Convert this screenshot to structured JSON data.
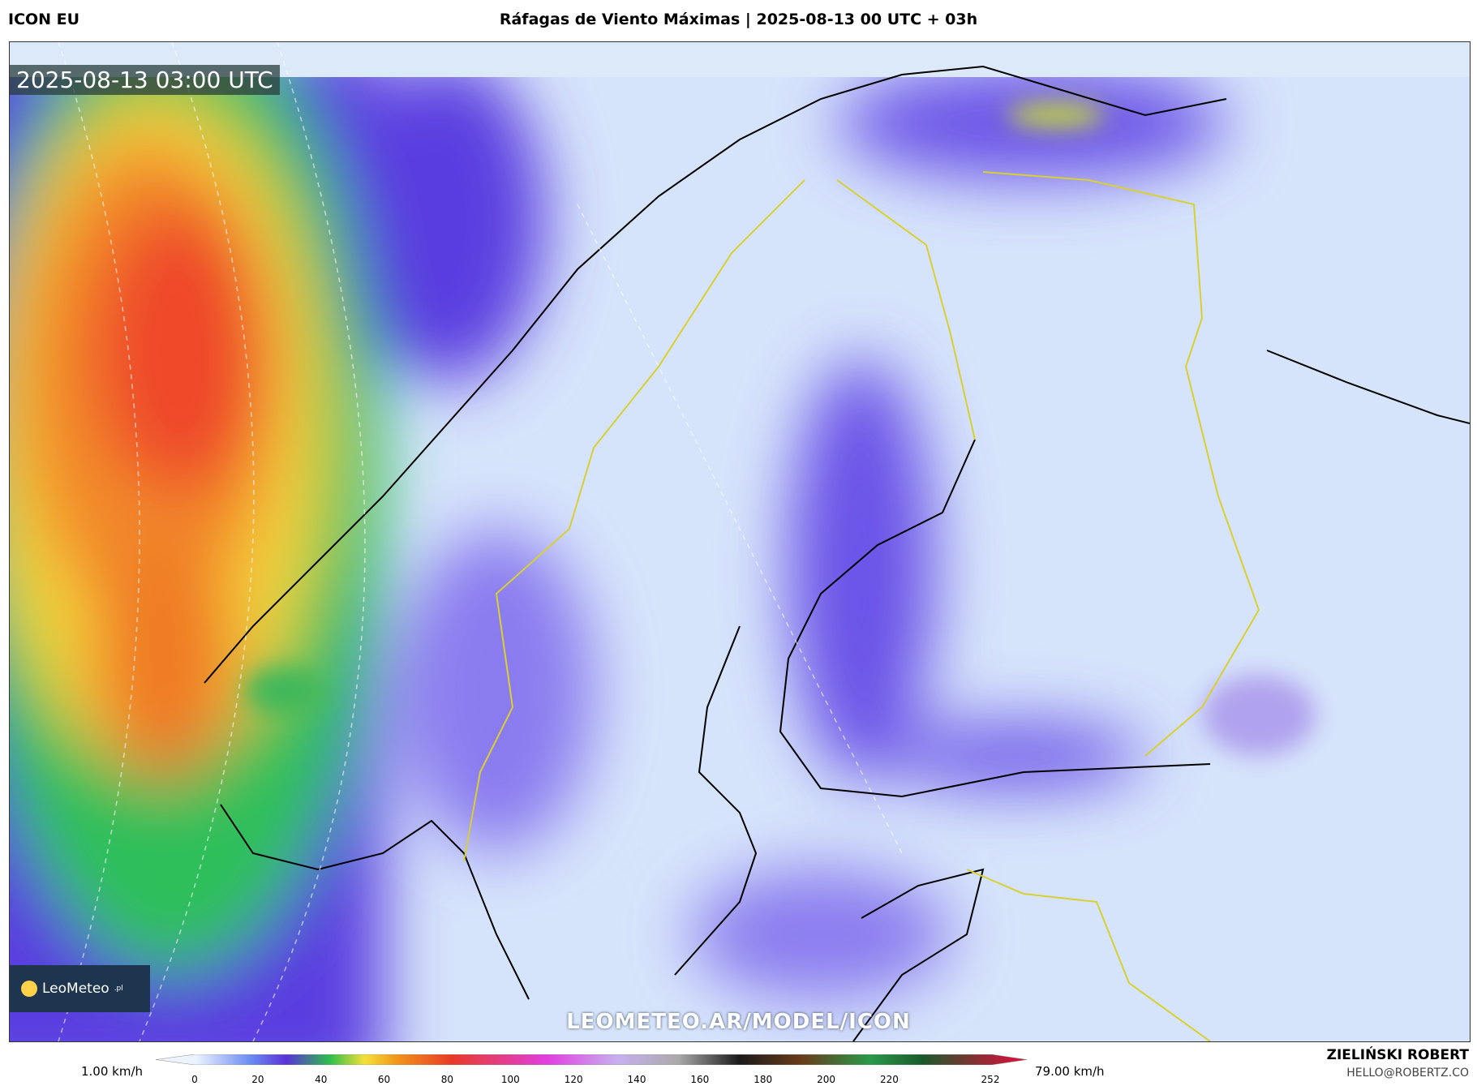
{
  "header": {
    "model": "ICON EU",
    "title": "Ráfagas de Viento Máximas | 2025-08-13 00 UTC + 03h"
  },
  "map": {
    "timestamp": "2025-08-13 03:00 UTC",
    "logo": "LeoMeteo",
    "logo_suffix": ".pl",
    "watermark": "LEOMETEO.AR/MODEL/ICON"
  },
  "legend": {
    "min_label": "1.00 km/h",
    "max_label": "79.00 km/h",
    "ticks": [
      0,
      20,
      40,
      60,
      80,
      100,
      120,
      140,
      160,
      180,
      200,
      220,
      252
    ],
    "range": [
      0,
      252
    ]
  },
  "footer": {
    "author": "ZIELIŃSKI ROBERT",
    "email": "HELLO@ROBERTZ.CO"
  }
}
